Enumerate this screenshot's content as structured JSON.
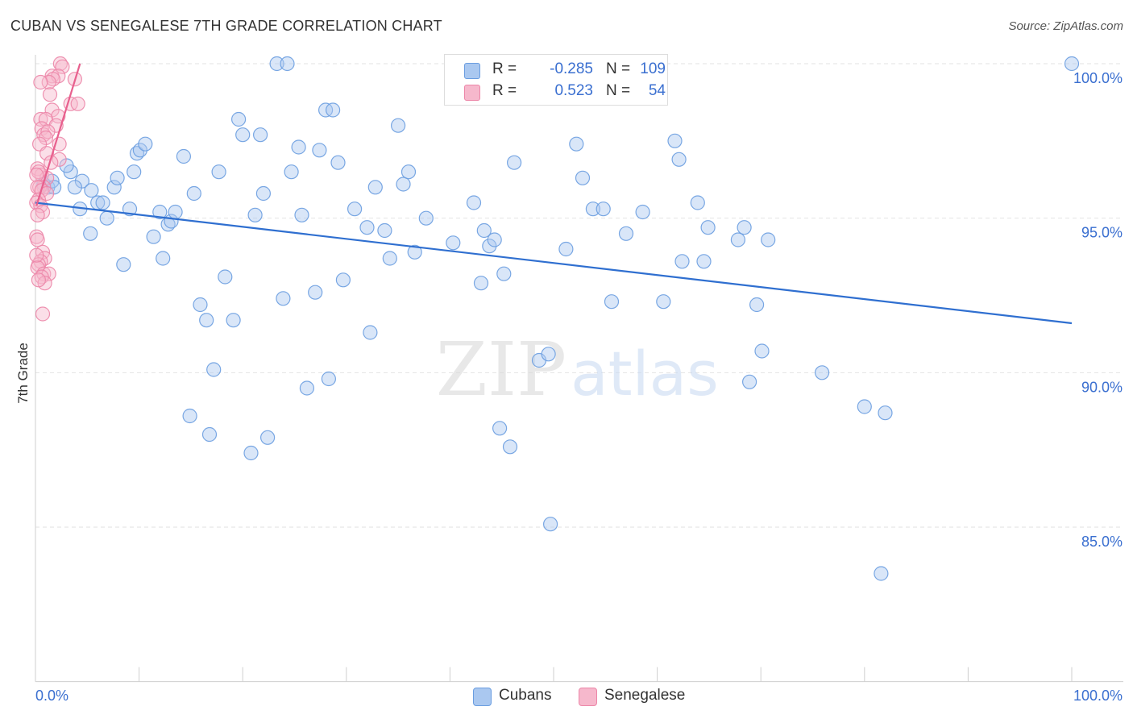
{
  "title": "CUBAN VS SENEGALESE 7TH GRADE CORRELATION CHART",
  "source": "Source: ZipAtlas.com",
  "watermark": {
    "zip": "ZIP",
    "atlas": "atlas"
  },
  "colors": {
    "blue_fill": "#aac8f0",
    "blue_stroke": "#6a9de0",
    "blue_line": "#2f6fd0",
    "pink_fill": "#f6b8cc",
    "pink_stroke": "#ec86a8",
    "pink_line": "#e8608e",
    "axis_text": "#3a6fd0",
    "grid": "#e2e2e2"
  },
  "legend": {
    "rows": [
      {
        "r_label": "R =",
        "r_value": "-0.285",
        "n_label": "N =",
        "n_value": "109"
      },
      {
        "r_label": "R =",
        "r_value": "0.523",
        "n_label": "N =",
        "n_value": "54"
      }
    ]
  },
  "bottom_legend": {
    "cubans": "Cubans",
    "senegalese": "Senegalese"
  },
  "chart_data": {
    "type": "scatter",
    "title": "CUBAN VS SENEGALESE 7TH GRADE CORRELATION CHART",
    "xlabel": "",
    "ylabel": "7th Grade",
    "xlim": [
      0,
      100
    ],
    "ylim": [
      80,
      100.6
    ],
    "x_tick_labels": {
      "left": "0.0%",
      "right": "100.0%"
    },
    "y_ticks": [
      100,
      95,
      90,
      85
    ],
    "y_tick_labels": [
      "100.0%",
      "95.0%",
      "90.0%",
      "85.0%"
    ],
    "grid": true,
    "series": [
      {
        "name": "Cubans",
        "R": -0.285,
        "N": 109,
        "trend": {
          "x": [
            0,
            100
          ],
          "y": [
            95.5,
            91.6
          ]
        },
        "points": [
          [
            0.8,
            96.1
          ],
          [
            1.2,
            96.0
          ],
          [
            1.6,
            96.2
          ],
          [
            1.8,
            96.0
          ],
          [
            3.4,
            96.5
          ],
          [
            4.5,
            96.2
          ],
          [
            3.0,
            96.7
          ],
          [
            3.8,
            96.0
          ],
          [
            5.4,
            95.9
          ],
          [
            4.3,
            95.3
          ],
          [
            5.3,
            94.5
          ],
          [
            6.0,
            95.5
          ],
          [
            6.5,
            95.5
          ],
          [
            6.9,
            95.0
          ],
          [
            7.6,
            96.0
          ],
          [
            7.9,
            96.3
          ],
          [
            8.5,
            93.5
          ],
          [
            9.1,
            95.3
          ],
          [
            9.5,
            96.5
          ],
          [
            9.8,
            97.1
          ],
          [
            10.1,
            97.2
          ],
          [
            10.6,
            97.4
          ],
          [
            11.4,
            94.4
          ],
          [
            12.0,
            95.2
          ],
          [
            12.3,
            93.7
          ],
          [
            12.8,
            94.8
          ],
          [
            13.1,
            94.9
          ],
          [
            13.5,
            95.2
          ],
          [
            14.3,
            97.0
          ],
          [
            14.9,
            88.6
          ],
          [
            15.3,
            95.8
          ],
          [
            15.9,
            92.2
          ],
          [
            16.5,
            91.7
          ],
          [
            16.8,
            88.0
          ],
          [
            17.2,
            90.1
          ],
          [
            17.7,
            96.5
          ],
          [
            18.3,
            93.1
          ],
          [
            19.1,
            91.7
          ],
          [
            19.6,
            98.2
          ],
          [
            20.0,
            97.7
          ],
          [
            20.8,
            87.4
          ],
          [
            21.2,
            95.1
          ],
          [
            21.7,
            97.7
          ],
          [
            22.0,
            95.8
          ],
          [
            22.4,
            87.9
          ],
          [
            23.3,
            100.0
          ],
          [
            23.9,
            92.4
          ],
          [
            24.3,
            100.0
          ],
          [
            24.7,
            96.5
          ],
          [
            25.4,
            97.3
          ],
          [
            25.7,
            95.1
          ],
          [
            26.2,
            89.5
          ],
          [
            27.0,
            92.6
          ],
          [
            27.4,
            97.2
          ],
          [
            28.0,
            98.5
          ],
          [
            28.3,
            89.8
          ],
          [
            28.7,
            98.5
          ],
          [
            29.2,
            96.8
          ],
          [
            29.7,
            93.0
          ],
          [
            30.8,
            95.3
          ],
          [
            32.0,
            94.7
          ],
          [
            32.3,
            91.3
          ],
          [
            32.8,
            96.0
          ],
          [
            33.7,
            94.6
          ],
          [
            34.2,
            93.7
          ],
          [
            35.0,
            98.0
          ],
          [
            35.5,
            96.1
          ],
          [
            36.0,
            96.5
          ],
          [
            36.6,
            93.9
          ],
          [
            37.7,
            95.0
          ],
          [
            40.3,
            94.2
          ],
          [
            42.3,
            95.5
          ],
          [
            43.0,
            92.9
          ],
          [
            43.3,
            94.6
          ],
          [
            43.8,
            94.1
          ],
          [
            44.3,
            94.3
          ],
          [
            44.8,
            88.2
          ],
          [
            45.2,
            93.2
          ],
          [
            45.8,
            87.6
          ],
          [
            46.2,
            96.8
          ],
          [
            48.6,
            90.4
          ],
          [
            49.5,
            90.6
          ],
          [
            49.7,
            85.1
          ],
          [
            51.2,
            94.0
          ],
          [
            52.2,
            97.4
          ],
          [
            52.8,
            96.3
          ],
          [
            53.8,
            95.3
          ],
          [
            54.8,
            95.3
          ],
          [
            55.6,
            92.3
          ],
          [
            57.0,
            94.5
          ],
          [
            58.6,
            95.2
          ],
          [
            60.6,
            92.3
          ],
          [
            61.7,
            97.5
          ],
          [
            62.1,
            96.9
          ],
          [
            62.4,
            93.6
          ],
          [
            63.9,
            95.5
          ],
          [
            64.5,
            93.6
          ],
          [
            64.9,
            94.7
          ],
          [
            67.8,
            94.3
          ],
          [
            68.4,
            94.7
          ],
          [
            68.9,
            89.7
          ],
          [
            69.6,
            92.2
          ],
          [
            70.1,
            90.7
          ],
          [
            70.7,
            94.3
          ],
          [
            75.9,
            90.0
          ],
          [
            80.0,
            88.9
          ],
          [
            81.6,
            83.5
          ],
          [
            82.0,
            88.7
          ],
          [
            100.0,
            100.0
          ]
        ]
      },
      {
        "name": "Senegalese",
        "R": 0.523,
        "N": 54,
        "trend": {
          "x": [
            0.1,
            4.3
          ],
          "y": [
            95.4,
            100.0
          ]
        },
        "points": [
          [
            2.4,
            100.0
          ],
          [
            2.6,
            99.9
          ],
          [
            1.6,
            99.6
          ],
          [
            2.2,
            99.6
          ],
          [
            1.7,
            99.5
          ],
          [
            3.8,
            99.5
          ],
          [
            1.3,
            99.4
          ],
          [
            0.5,
            99.4
          ],
          [
            1.4,
            99.0
          ],
          [
            3.4,
            98.7
          ],
          [
            4.1,
            98.7
          ],
          [
            1.6,
            98.5
          ],
          [
            2.2,
            98.3
          ],
          [
            0.5,
            98.2
          ],
          [
            1.0,
            98.2
          ],
          [
            2.0,
            98.0
          ],
          [
            0.6,
            97.9
          ],
          [
            0.8,
            97.7
          ],
          [
            1.2,
            97.8
          ],
          [
            1.0,
            97.6
          ],
          [
            0.4,
            97.4
          ],
          [
            2.3,
            97.4
          ],
          [
            1.1,
            97.1
          ],
          [
            2.3,
            96.9
          ],
          [
            0.2,
            96.6
          ],
          [
            0.6,
            96.4
          ],
          [
            1.1,
            96.3
          ],
          [
            0.3,
            96.5
          ],
          [
            0.1,
            96.4
          ],
          [
            0.8,
            96.0
          ],
          [
            0.4,
            96.0
          ],
          [
            0.2,
            96.0
          ],
          [
            0.6,
            95.9
          ],
          [
            1.1,
            95.8
          ],
          [
            0.3,
            95.6
          ],
          [
            0.1,
            95.5
          ],
          [
            0.5,
            95.4
          ],
          [
            0.7,
            95.2
          ],
          [
            0.2,
            95.1
          ],
          [
            0.1,
            94.4
          ],
          [
            0.2,
            94.3
          ],
          [
            0.7,
            93.9
          ],
          [
            0.9,
            93.7
          ],
          [
            0.5,
            93.6
          ],
          [
            0.3,
            93.5
          ],
          [
            0.2,
            93.4
          ],
          [
            0.8,
            93.2
          ],
          [
            1.3,
            93.2
          ],
          [
            0.6,
            93.1
          ],
          [
            0.9,
            92.9
          ],
          [
            0.3,
            93.0
          ],
          [
            0.7,
            91.9
          ],
          [
            0.1,
            93.8
          ],
          [
            1.5,
            96.8
          ]
        ]
      }
    ]
  }
}
